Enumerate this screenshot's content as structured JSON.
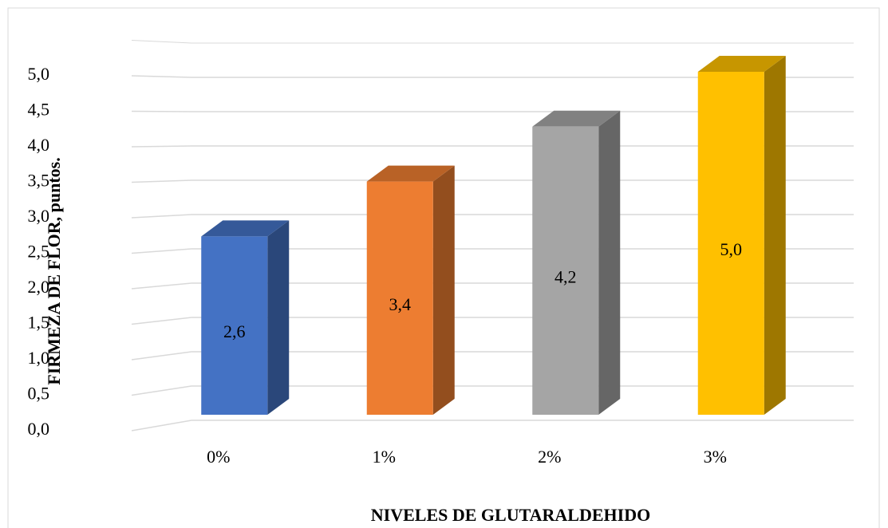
{
  "chart_data": {
    "type": "bar3d",
    "x_label": "NIVELES DE GLUTARALDEHIDO",
    "y_label": "FIRMEZA DE FLOR, puntos.",
    "categories": [
      "0%",
      "1%",
      "2%",
      "3%"
    ],
    "values": [
      2.6,
      3.4,
      4.2,
      5.0
    ],
    "value_labels": [
      "2,6",
      "3,4",
      "4,2",
      "5,0"
    ],
    "colors": [
      "#4472c4",
      "#ed7d31",
      "#a5a5a5",
      "#ffc000"
    ],
    "ylim": [
      0,
      5.5
    ],
    "yticks": [
      {
        "value": 0,
        "label": "0,0"
      },
      {
        "value": 0.5,
        "label": "0,5"
      },
      {
        "value": 1,
        "label": "1,0"
      },
      {
        "value": 1.5,
        "label": "1,5"
      },
      {
        "value": 2,
        "label": "2,0"
      },
      {
        "value": 2.5,
        "label": "2,5"
      },
      {
        "value": 3,
        "label": "3,0"
      },
      {
        "value": 3.5,
        "label": "3,5"
      },
      {
        "value": 4,
        "label": "4,0"
      },
      {
        "value": 4.5,
        "label": "4,5"
      },
      {
        "value": 5,
        "label": "5,0"
      }
    ],
    "grid": true
  }
}
